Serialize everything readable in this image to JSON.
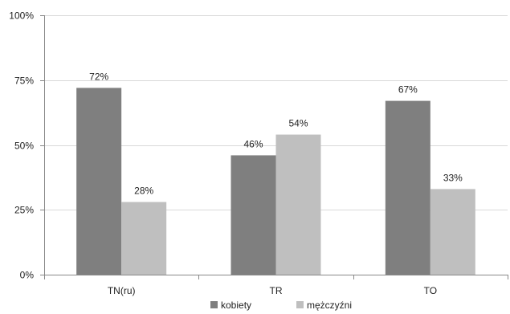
{
  "chart_data": {
    "type": "bar",
    "categories": [
      "TN(ru)",
      "TR",
      "TO"
    ],
    "series": [
      {
        "name": "kobiety",
        "values": [
          72,
          46,
          67
        ],
        "labels": [
          "72%",
          "46%",
          "67%"
        ],
        "color": "#7f7f7f"
      },
      {
        "name": "mężczyźni",
        "values": [
          28,
          54,
          33
        ],
        "labels": [
          "28%",
          "54%",
          "33%"
        ],
        "color": "#bfbfbf"
      }
    ],
    "ylim": [
      0,
      100
    ],
    "yticks": [
      0,
      25,
      50,
      75,
      100
    ],
    "ytick_labels": [
      "0%",
      "25%",
      "50%",
      "75%",
      "100%"
    ],
    "grid": "horizontal",
    "legend_position": "bottom",
    "colors": {
      "gridline": "#d9d9d9",
      "axis": "#888888"
    }
  }
}
